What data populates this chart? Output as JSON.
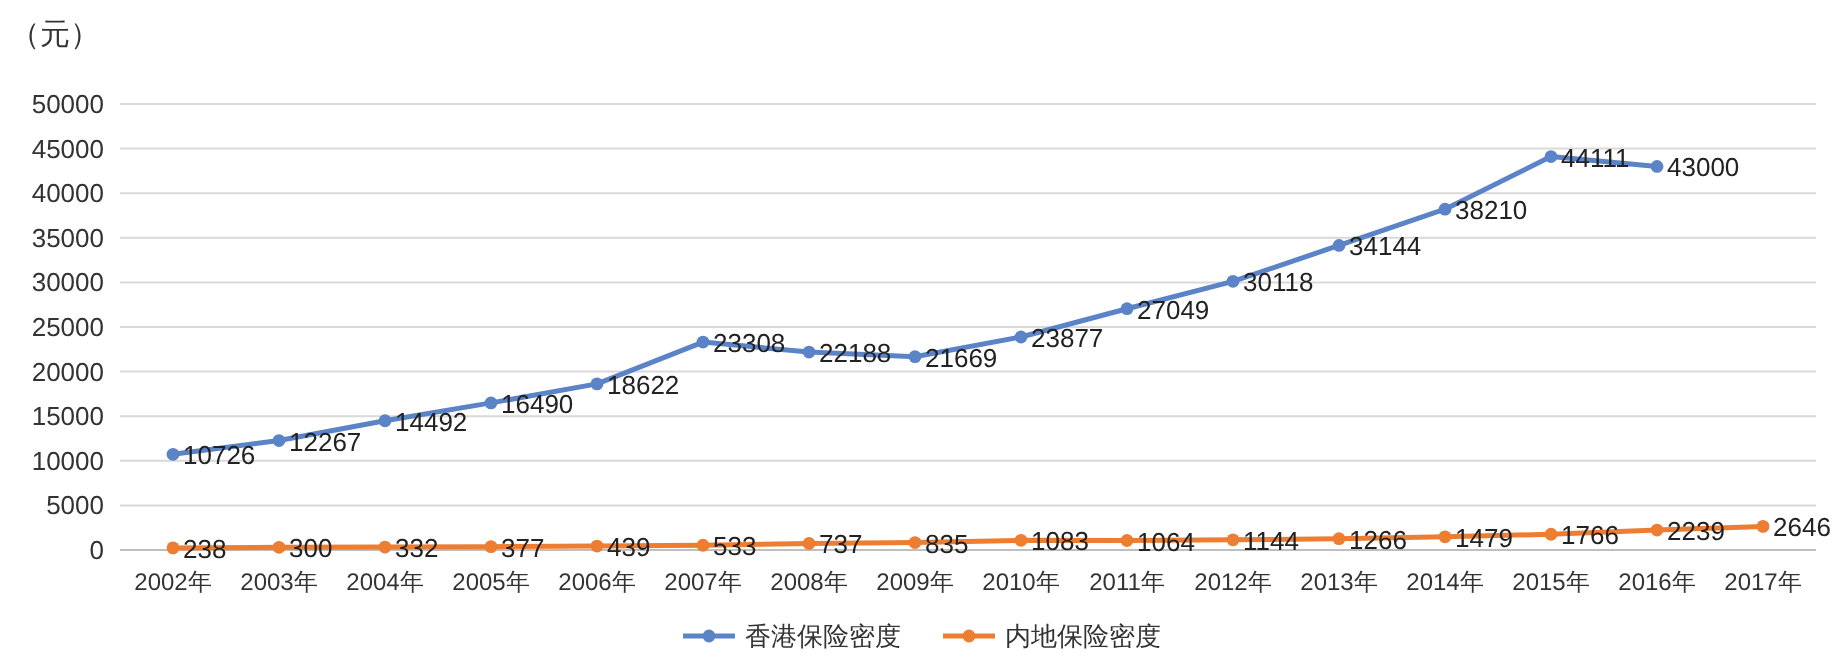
{
  "chart_data": {
    "type": "line",
    "ylabel": "（元）",
    "categories": [
      "2002年",
      "2003年",
      "2004年",
      "2005年",
      "2006年",
      "2007年",
      "2008年",
      "2009年",
      "2010年",
      "2011年",
      "2012年",
      "2013年",
      "2014年",
      "2015年",
      "2016年",
      "2017年"
    ],
    "ylim": [
      0,
      50000
    ],
    "yticks": [
      0,
      5000,
      10000,
      15000,
      20000,
      25000,
      30000,
      35000,
      40000,
      45000,
      50000
    ],
    "grid": "y",
    "legend": "bottom",
    "marker": "circle",
    "data_labels": true,
    "series": [
      {
        "name": "香港保险密度",
        "color": "#5b83c7",
        "values": [
          10726,
          12267,
          14492,
          16490,
          18622,
          23308,
          22188,
          21669,
          23877,
          27049,
          30118,
          34144,
          38210,
          44111,
          43000,
          null
        ]
      },
      {
        "name": "内地保险密度",
        "color": "#ed7d31",
        "values": [
          238,
          300,
          332,
          377,
          439,
          533,
          737,
          835,
          1083,
          1064,
          1144,
          1266,
          1479,
          1766,
          2239,
          2646
        ]
      }
    ]
  }
}
